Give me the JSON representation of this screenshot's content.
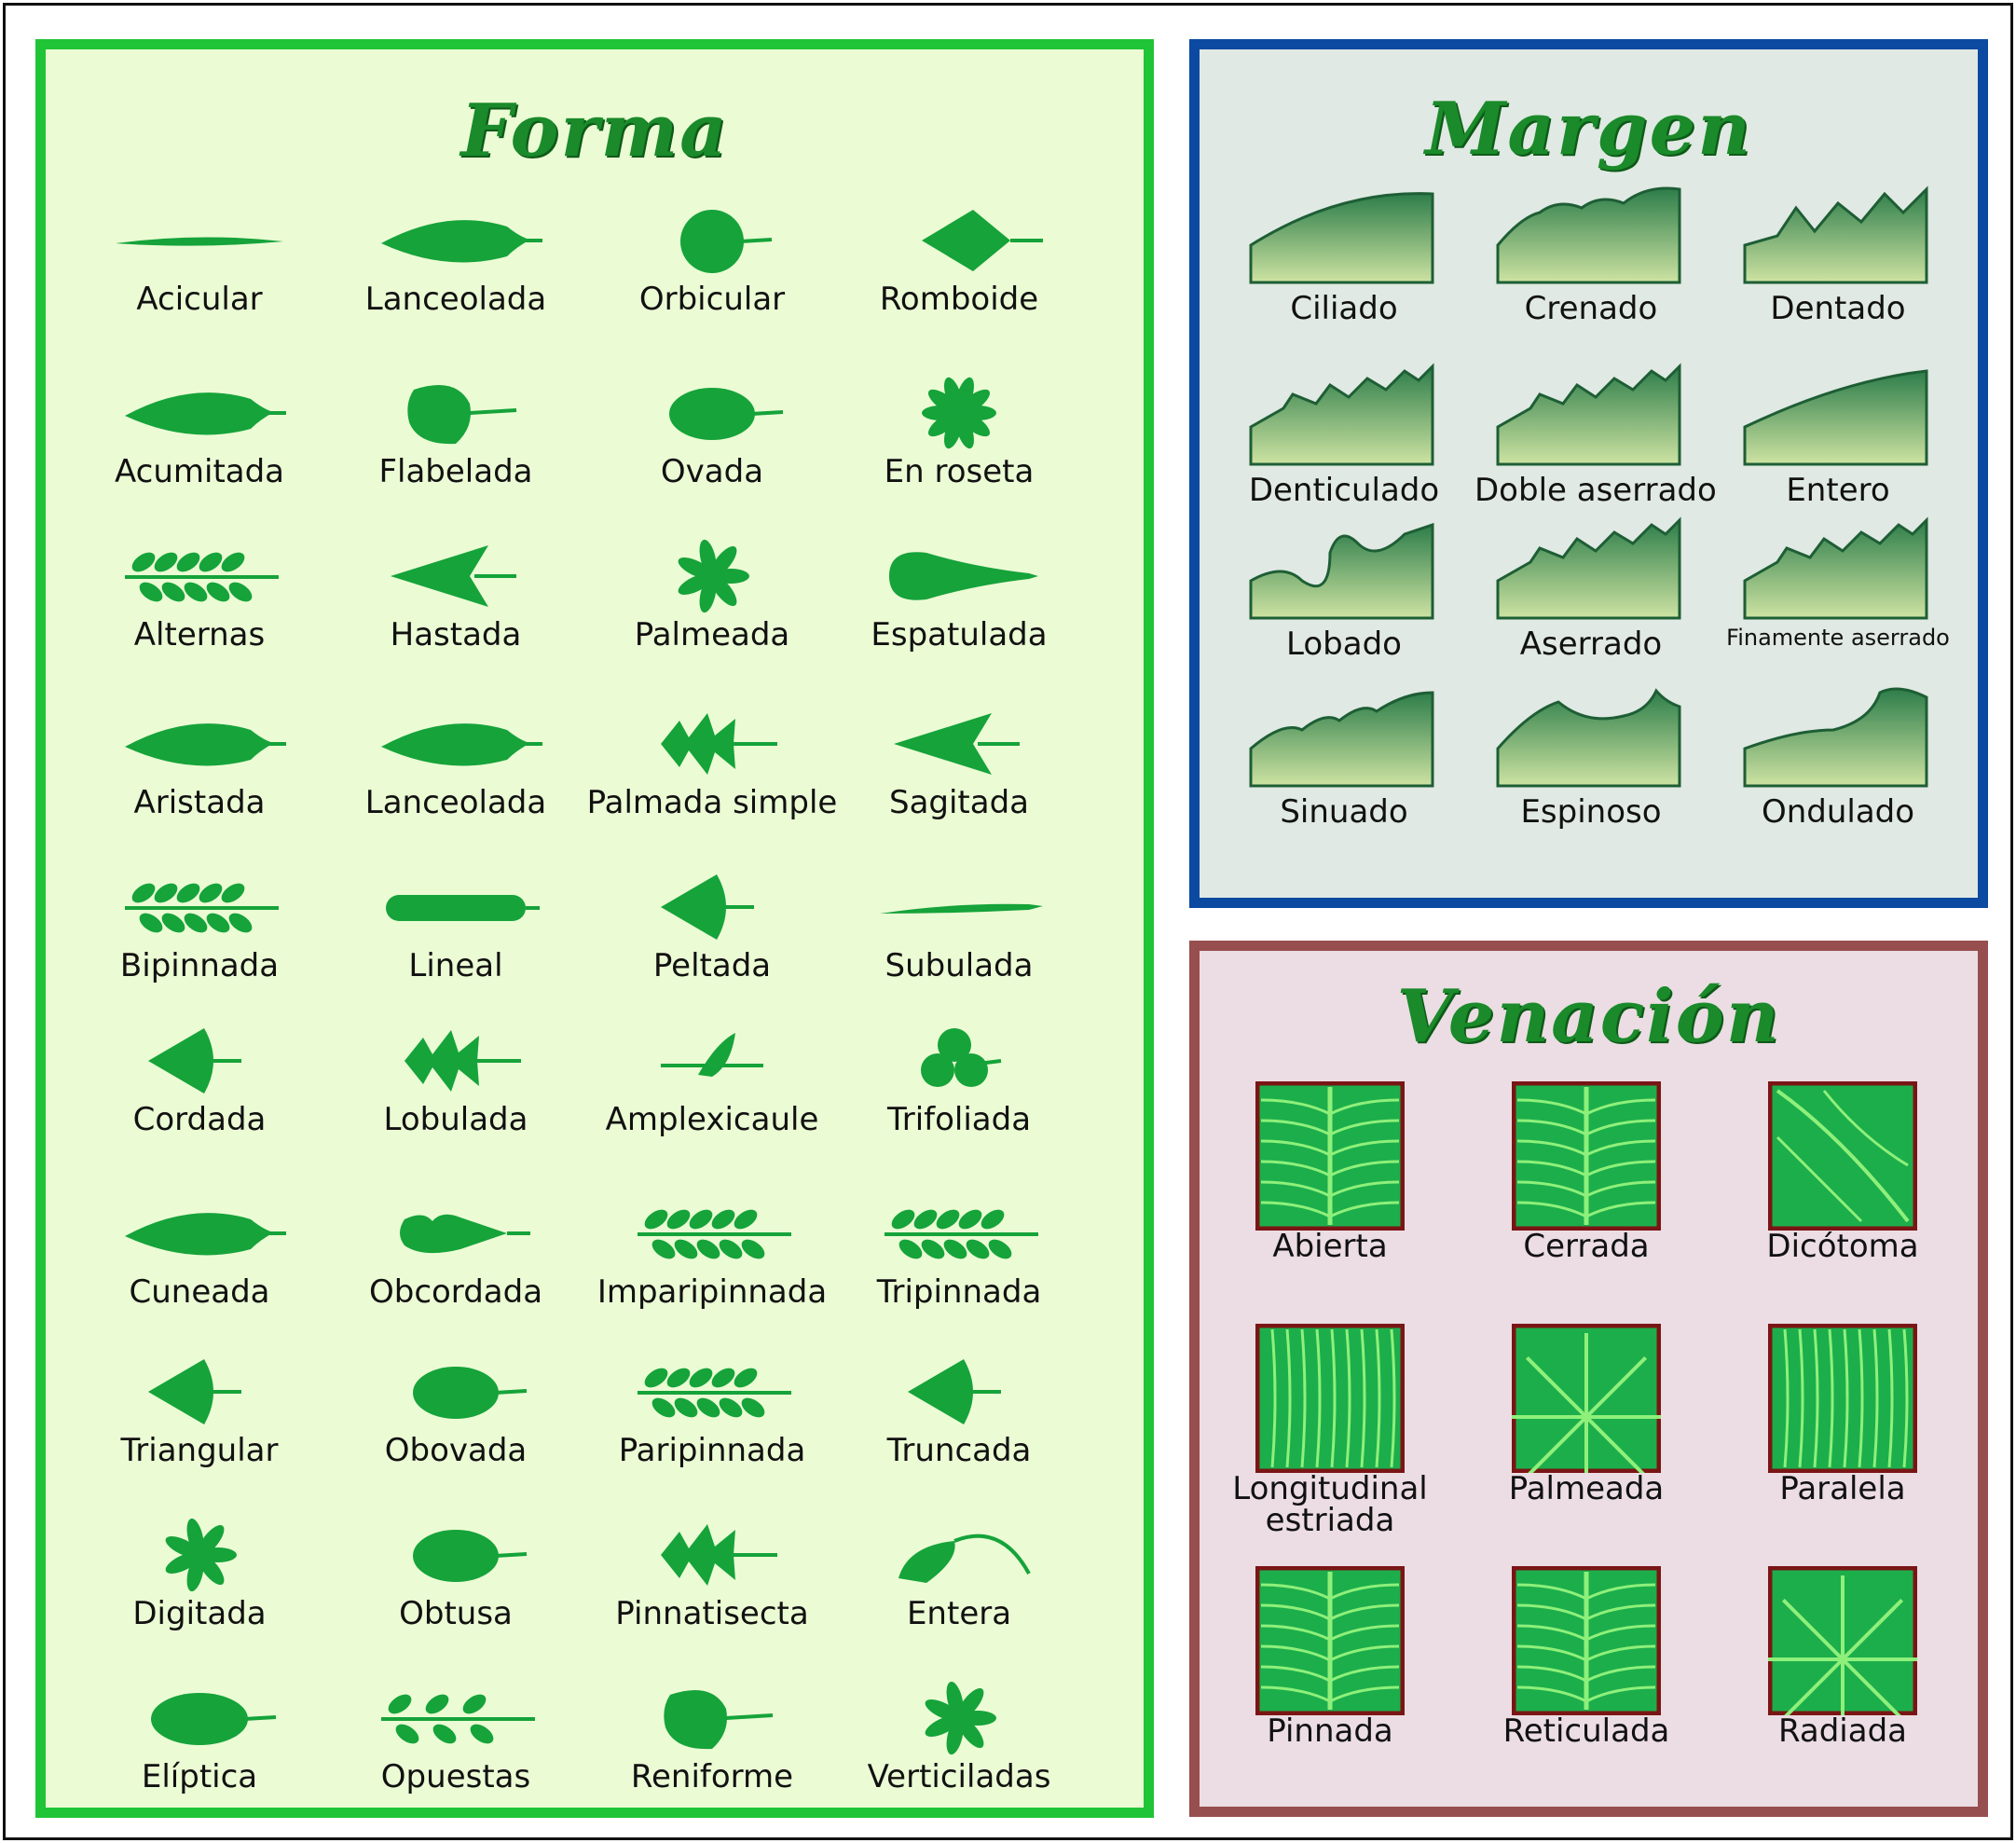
{
  "panels": {
    "forma": {
      "title": "Forma"
    },
    "margen": {
      "title": "Margen"
    },
    "venacion": {
      "title": "Venación"
    }
  },
  "forma_items": [
    [
      "Acicular",
      "Lanceolada",
      "Orbicular",
      "Romboide"
    ],
    [
      "Acumitada",
      "Flabelada",
      "Ovada",
      "En roseta"
    ],
    [
      "Alternas",
      "Hastada",
      "Palmeada",
      "Espatulada"
    ],
    [
      "Aristada",
      "Lanceolada",
      "Palmada simple",
      "Sagitada"
    ],
    [
      "Bipinnada",
      "Lineal",
      "Peltada",
      "Subulada"
    ],
    [
      "Cordada",
      "Lobulada",
      "Amplexicaule",
      "Trifoliada"
    ],
    [
      "Cuneada",
      "Obcordada",
      "Imparipinnada",
      "Tripinnada"
    ],
    [
      "Triangular",
      "Obovada",
      "Paripinnada",
      "Truncada"
    ],
    [
      "Digitada",
      "Obtusa",
      "Pinnatisecta",
      "Entera"
    ],
    [
      "Elíptica",
      "Opuestas",
      "Reniforme",
      "Verticiladas"
    ]
  ],
  "margen_items": [
    [
      "Ciliado",
      "Crenado",
      "Dentado"
    ],
    [
      "Denticulado",
      "Doble aserrado",
      "Entero"
    ],
    [
      "Lobado",
      "Aserrado",
      "Finamente aserrado"
    ],
    [
      "Sinuado",
      "Espinoso",
      "Ondulado"
    ]
  ],
  "venacion_items": [
    [
      "Abierta",
      "Cerrada",
      "Dicótoma"
    ],
    [
      "Longitudinal estriada",
      "Palmeada",
      "Paralela"
    ],
    [
      "Pinnada",
      "Reticulada",
      "Radiada"
    ]
  ],
  "colors": {
    "leaf": "#15a33a",
    "forma_border": "#1fc536",
    "margen_border": "#0b4aa0",
    "venacion_border": "#974e4e",
    "title": "#1a8a2a"
  }
}
